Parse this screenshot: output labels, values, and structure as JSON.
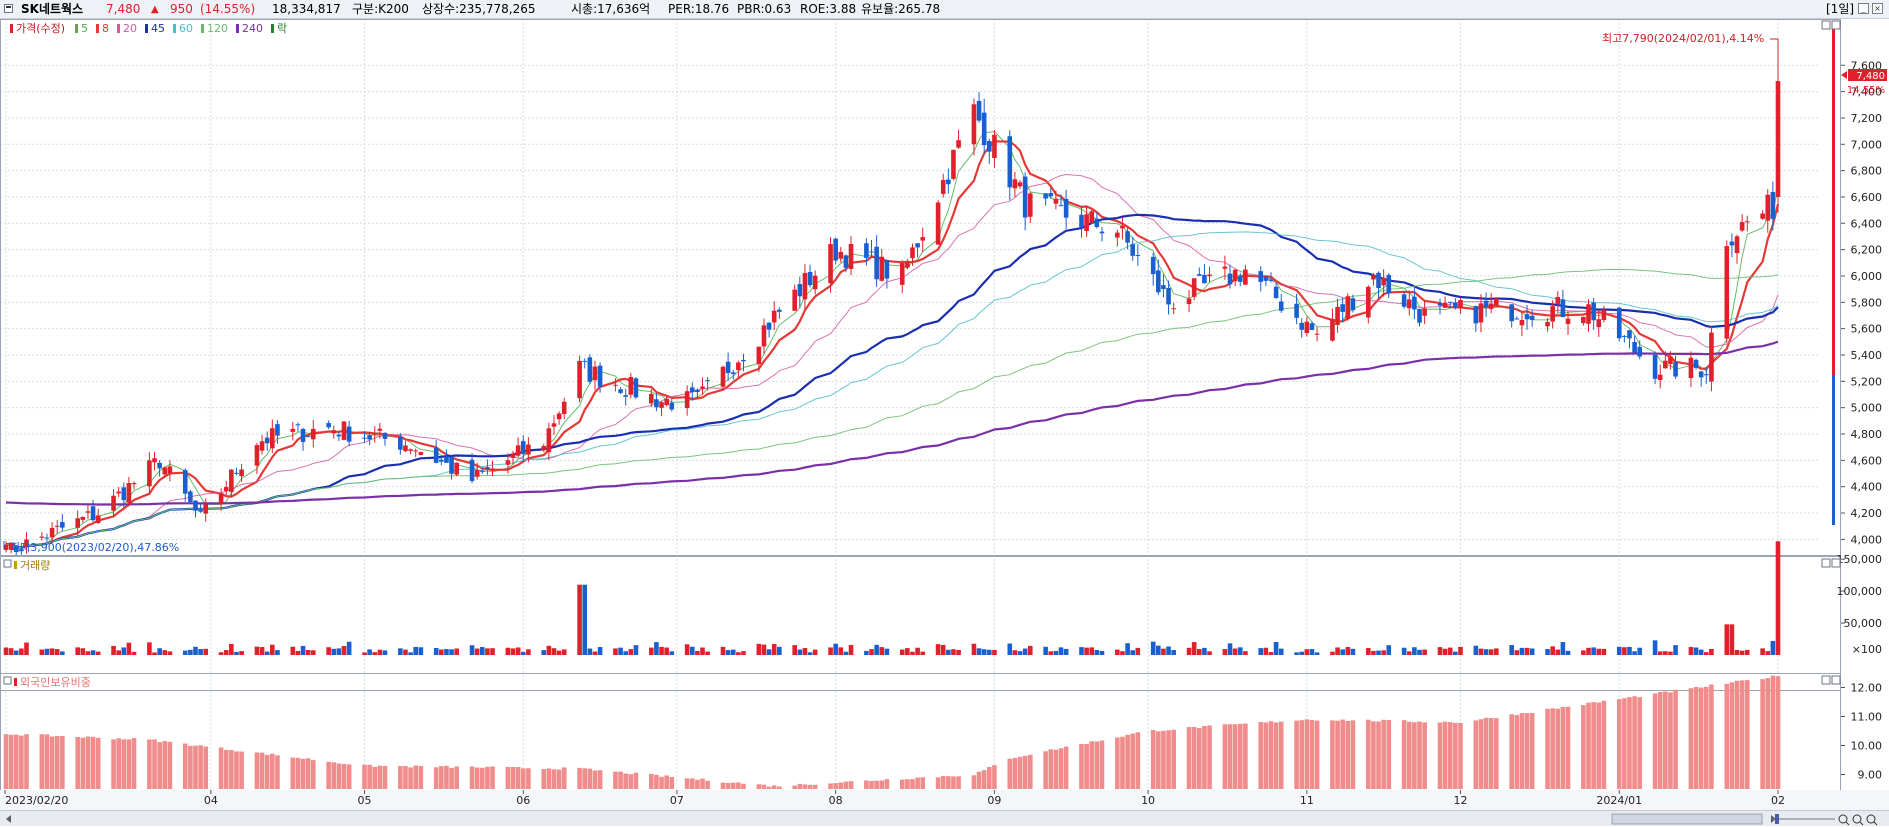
{
  "header": {
    "stock_name": "SK네트웍스",
    "price": "7,480",
    "change_arrow": "▲",
    "change": "950",
    "change_pct": "(14.55%)",
    "volume": "18,334,817",
    "segment": "구분:K200",
    "listed_shares": "상장수:235,778,265",
    "market_cap": "시총:17,636억",
    "per": "PER:18.76",
    "pbr": "PBR:0.63",
    "roe": "ROE:3.88",
    "retention": "유보율:265.78",
    "period": "[1일]"
  },
  "legend": {
    "price_label": "가격(수정)",
    "ma_labels": [
      "5",
      "8",
      "20",
      "45",
      "60",
      "120",
      "240"
    ],
    "ma_colors": [
      "#4caf50",
      "#e53935",
      "#d45aa0",
      "#1a2fb0",
      "#4dbcc8",
      "#66bb6a",
      "#7b2fa8"
    ],
    "extra_label": "락"
  },
  "annotations": {
    "high": "최고7,790(2024/02/01),4.14%",
    "low": "최저3,900(2023/02/20),47.86%"
  },
  "price_axis": {
    "ticks": [
      "7,600",
      "7,400",
      "7,200",
      "7,000",
      "6,800",
      "6,600",
      "6,400",
      "6,200",
      "6,000",
      "5,800",
      "5,600",
      "5,400",
      "5,200",
      "5,000",
      "4,800",
      "4,600",
      "4,400",
      "4,200",
      "4,000"
    ],
    "tag_price": "7,480",
    "tag_pct": "14.55%"
  },
  "volume_panel": {
    "label": "거래량",
    "ticks": [
      "150,000",
      "100,000",
      "50,000",
      "×100"
    ]
  },
  "foreign_panel": {
    "label": "외국인보유비중",
    "ticks": [
      "12.00",
      "11.00",
      "10.00",
      "9.00"
    ]
  },
  "x_axis": {
    "labels": [
      "2023/02/20",
      "04",
      "05",
      "06",
      "07",
      "08",
      "09",
      "10",
      "11",
      "12",
      "2024/01",
      "02"
    ]
  },
  "colors": {
    "up": "#e0202a",
    "down": "#1a5fd0",
    "foreign_bar": "#f08c8c",
    "grid": "#d7dce4"
  },
  "chart_data": {
    "type": "candlestick",
    "period": "1일",
    "x_range": [
      "2023/02/20",
      "2024/02/01"
    ],
    "ylim_price": [
      3900,
      7790
    ],
    "price_path": [
      {
        "date": "2023/02/20",
        "close": 3900
      },
      {
        "date": "2023/03/10",
        "close": 4200
      },
      {
        "date": "2023/03/22",
        "close": 4600
      },
      {
        "date": "2023/03/30",
        "close": 4150
      },
      {
        "date": "2023/04/10",
        "close": 4750
      },
      {
        "date": "2023/04/24",
        "close": 4850
      },
      {
        "date": "2023/05/10",
        "close": 4720
      },
      {
        "date": "2023/05/22",
        "close": 4450
      },
      {
        "date": "2023/06/05",
        "close": 4750
      },
      {
        "date": "2023/06/12",
        "close": 5300
      },
      {
        "date": "2023/06/28",
        "close": 5050
      },
      {
        "date": "2023/07/05",
        "close": 5050
      },
      {
        "date": "2023/07/25",
        "close": 5900
      },
      {
        "date": "2023/08/01",
        "close": 6200
      },
      {
        "date": "2023/08/14",
        "close": 6000
      },
      {
        "date": "2023/08/28",
        "close": 7250
      },
      {
        "date": "2023/09/07",
        "close": 6550
      },
      {
        "date": "2023/09/25",
        "close": 6350
      },
      {
        "date": "2023/10/05",
        "close": 5800
      },
      {
        "date": "2023/10/20",
        "close": 6050
      },
      {
        "date": "2023/11/03",
        "close": 5550
      },
      {
        "date": "2023/11/14",
        "close": 6000
      },
      {
        "date": "2023/11/24",
        "close": 5700
      },
      {
        "date": "2023/12/08",
        "close": 5750
      },
      {
        "date": "2023/12/26",
        "close": 5750
      },
      {
        "date": "2024/01/08",
        "close": 5300
      },
      {
        "date": "2024/01/18",
        "close": 5300
      },
      {
        "date": "2024/01/22",
        "close": 6300
      },
      {
        "date": "2024/01/31",
        "close": 6530
      },
      {
        "date": "2024/02/01",
        "close": 7480
      }
    ],
    "high": {
      "value": 7790,
      "date": "2024/02/01"
    },
    "low": {
      "value": 3900,
      "date": "2023/02/20"
    },
    "last_close": 7480,
    "volume_ylim": [
      0,
      180000
    ],
    "volume_spikes": [
      {
        "date": "2023/06/12",
        "value": 110000
      },
      {
        "date": "2024/01/22",
        "value": 48000
      },
      {
        "date": "2024/02/01",
        "value": 178000
      }
    ],
    "foreign_ownership": [
      {
        "date": "2023/02/20",
        "value": 10.4
      },
      {
        "date": "2023/03/20",
        "value": 10.2
      },
      {
        "date": "2023/05/01",
        "value": 9.3
      },
      {
        "date": "2023/06/12",
        "value": 9.2
      },
      {
        "date": "2023/07/20",
        "value": 8.6
      },
      {
        "date": "2023/08/28",
        "value": 9.0
      },
      {
        "date": "2023/09/05",
        "value": 9.6
      },
      {
        "date": "2023/10/01",
        "value": 10.5
      },
      {
        "date": "2023/11/01",
        "value": 10.9
      },
      {
        "date": "2023/12/01",
        "value": 10.8
      },
      {
        "date": "2024/01/01",
        "value": 11.6
      },
      {
        "date": "2024/02/01",
        "value": 12.4
      }
    ],
    "foreign_ylim": [
      8.5,
      12.5
    ]
  }
}
